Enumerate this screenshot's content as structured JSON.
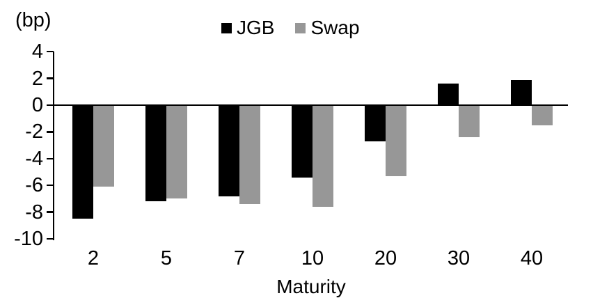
{
  "chart_data": {
    "type": "bar",
    "title": "",
    "unit_label": "(bp)",
    "xlabel": "Maturity",
    "ylabel": "",
    "categories": [
      "2",
      "5",
      "7",
      "10",
      "20",
      "30",
      "40"
    ],
    "series": [
      {
        "name": "JGB",
        "color": "#000000",
        "values": [
          -8.5,
          -7.2,
          -6.8,
          -5.4,
          -2.7,
          1.6,
          1.9
        ]
      },
      {
        "name": "Swap",
        "color": "#979797",
        "values": [
          -6.1,
          -7.0,
          -7.4,
          -7.6,
          -5.3,
          -2.4,
          -1.5
        ]
      }
    ],
    "ylim": [
      -10,
      4
    ],
    "yticks": [
      4,
      2,
      0,
      -2,
      -4,
      -6,
      -8,
      -10
    ],
    "ytick_interval": 2,
    "grid": false,
    "legend_position": "top-center",
    "axis_color": "#000000"
  }
}
